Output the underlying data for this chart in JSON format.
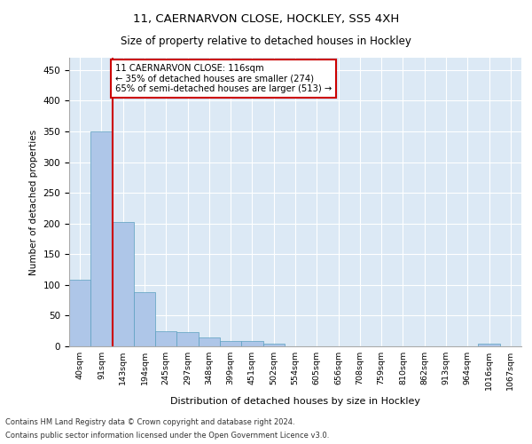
{
  "title_line1": "11, CAERNARVON CLOSE, HOCKLEY, SS5 4XH",
  "title_line2": "Size of property relative to detached houses in Hockley",
  "xlabel": "Distribution of detached houses by size in Hockley",
  "ylabel": "Number of detached properties",
  "bar_color": "#aec6e8",
  "bar_edge_color": "#5a9fc0",
  "plot_bg_color": "#dce9f5",
  "annotation_box_edge": "#cc0000",
  "red_line_color": "#cc0000",
  "categories": [
    "40sqm",
    "91sqm",
    "143sqm",
    "194sqm",
    "245sqm",
    "297sqm",
    "348sqm",
    "399sqm",
    "451sqm",
    "502sqm",
    "554sqm",
    "605sqm",
    "656sqm",
    "708sqm",
    "759sqm",
    "810sqm",
    "862sqm",
    "913sqm",
    "964sqm",
    "1016sqm",
    "1067sqm"
  ],
  "values": [
    108,
    350,
    203,
    88,
    25,
    23,
    14,
    9,
    8,
    5,
    0,
    0,
    0,
    0,
    0,
    0,
    0,
    0,
    0,
    5,
    0
  ],
  "red_line_x": 1.5,
  "annotation_line1": "11 CAERNARVON CLOSE: 116sqm",
  "annotation_line2": "← 35% of detached houses are smaller (274)",
  "annotation_line3": "65% of semi-detached houses are larger (513) →",
  "footnote_line1": "Contains HM Land Registry data © Crown copyright and database right 2024.",
  "footnote_line2": "Contains public sector information licensed under the Open Government Licence v3.0.",
  "ylim": [
    0,
    470
  ],
  "yticks": [
    0,
    50,
    100,
    150,
    200,
    250,
    300,
    350,
    400,
    450
  ]
}
